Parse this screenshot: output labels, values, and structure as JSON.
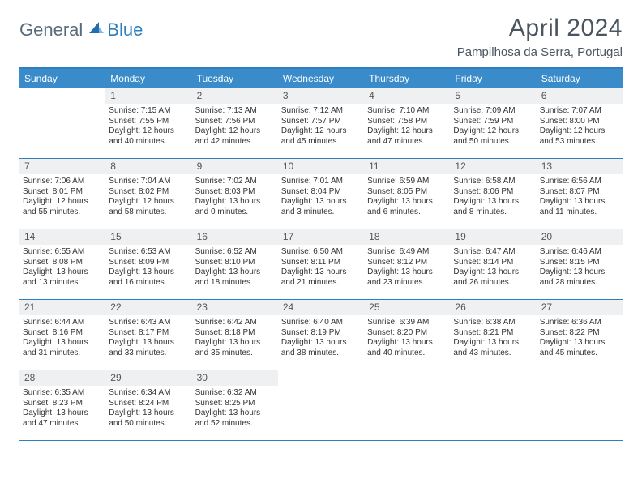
{
  "logo": {
    "text1": "General",
    "text2": "Blue"
  },
  "title": "April 2024",
  "subtitle": "Pampilhosa da Serra, Portugal",
  "colors": {
    "header_bar": "#3a8bc9",
    "rule": "#2f7fbf",
    "daynum_band": "#eef0f2",
    "title_text": "#4a5560",
    "body_text": "#333333"
  },
  "day_names": [
    "Sunday",
    "Monday",
    "Tuesday",
    "Wednesday",
    "Thursday",
    "Friday",
    "Saturday"
  ],
  "weeks": [
    [
      {
        "n": "",
        "empty": true
      },
      {
        "n": "1",
        "sr": "Sunrise: 7:15 AM",
        "ss": "Sunset: 7:55 PM",
        "d1": "Daylight: 12 hours",
        "d2": "and 40 minutes."
      },
      {
        "n": "2",
        "sr": "Sunrise: 7:13 AM",
        "ss": "Sunset: 7:56 PM",
        "d1": "Daylight: 12 hours",
        "d2": "and 42 minutes."
      },
      {
        "n": "3",
        "sr": "Sunrise: 7:12 AM",
        "ss": "Sunset: 7:57 PM",
        "d1": "Daylight: 12 hours",
        "d2": "and 45 minutes."
      },
      {
        "n": "4",
        "sr": "Sunrise: 7:10 AM",
        "ss": "Sunset: 7:58 PM",
        "d1": "Daylight: 12 hours",
        "d2": "and 47 minutes."
      },
      {
        "n": "5",
        "sr": "Sunrise: 7:09 AM",
        "ss": "Sunset: 7:59 PM",
        "d1": "Daylight: 12 hours",
        "d2": "and 50 minutes."
      },
      {
        "n": "6",
        "sr": "Sunrise: 7:07 AM",
        "ss": "Sunset: 8:00 PM",
        "d1": "Daylight: 12 hours",
        "d2": "and 53 minutes."
      }
    ],
    [
      {
        "n": "7",
        "sr": "Sunrise: 7:06 AM",
        "ss": "Sunset: 8:01 PM",
        "d1": "Daylight: 12 hours",
        "d2": "and 55 minutes."
      },
      {
        "n": "8",
        "sr": "Sunrise: 7:04 AM",
        "ss": "Sunset: 8:02 PM",
        "d1": "Daylight: 12 hours",
        "d2": "and 58 minutes."
      },
      {
        "n": "9",
        "sr": "Sunrise: 7:02 AM",
        "ss": "Sunset: 8:03 PM",
        "d1": "Daylight: 13 hours",
        "d2": "and 0 minutes."
      },
      {
        "n": "10",
        "sr": "Sunrise: 7:01 AM",
        "ss": "Sunset: 8:04 PM",
        "d1": "Daylight: 13 hours",
        "d2": "and 3 minutes."
      },
      {
        "n": "11",
        "sr": "Sunrise: 6:59 AM",
        "ss": "Sunset: 8:05 PM",
        "d1": "Daylight: 13 hours",
        "d2": "and 6 minutes."
      },
      {
        "n": "12",
        "sr": "Sunrise: 6:58 AM",
        "ss": "Sunset: 8:06 PM",
        "d1": "Daylight: 13 hours",
        "d2": "and 8 minutes."
      },
      {
        "n": "13",
        "sr": "Sunrise: 6:56 AM",
        "ss": "Sunset: 8:07 PM",
        "d1": "Daylight: 13 hours",
        "d2": "and 11 minutes."
      }
    ],
    [
      {
        "n": "14",
        "sr": "Sunrise: 6:55 AM",
        "ss": "Sunset: 8:08 PM",
        "d1": "Daylight: 13 hours",
        "d2": "and 13 minutes."
      },
      {
        "n": "15",
        "sr": "Sunrise: 6:53 AM",
        "ss": "Sunset: 8:09 PM",
        "d1": "Daylight: 13 hours",
        "d2": "and 16 minutes."
      },
      {
        "n": "16",
        "sr": "Sunrise: 6:52 AM",
        "ss": "Sunset: 8:10 PM",
        "d1": "Daylight: 13 hours",
        "d2": "and 18 minutes."
      },
      {
        "n": "17",
        "sr": "Sunrise: 6:50 AM",
        "ss": "Sunset: 8:11 PM",
        "d1": "Daylight: 13 hours",
        "d2": "and 21 minutes."
      },
      {
        "n": "18",
        "sr": "Sunrise: 6:49 AM",
        "ss": "Sunset: 8:12 PM",
        "d1": "Daylight: 13 hours",
        "d2": "and 23 minutes."
      },
      {
        "n": "19",
        "sr": "Sunrise: 6:47 AM",
        "ss": "Sunset: 8:14 PM",
        "d1": "Daylight: 13 hours",
        "d2": "and 26 minutes."
      },
      {
        "n": "20",
        "sr": "Sunrise: 6:46 AM",
        "ss": "Sunset: 8:15 PM",
        "d1": "Daylight: 13 hours",
        "d2": "and 28 minutes."
      }
    ],
    [
      {
        "n": "21",
        "sr": "Sunrise: 6:44 AM",
        "ss": "Sunset: 8:16 PM",
        "d1": "Daylight: 13 hours",
        "d2": "and 31 minutes."
      },
      {
        "n": "22",
        "sr": "Sunrise: 6:43 AM",
        "ss": "Sunset: 8:17 PM",
        "d1": "Daylight: 13 hours",
        "d2": "and 33 minutes."
      },
      {
        "n": "23",
        "sr": "Sunrise: 6:42 AM",
        "ss": "Sunset: 8:18 PM",
        "d1": "Daylight: 13 hours",
        "d2": "and 35 minutes."
      },
      {
        "n": "24",
        "sr": "Sunrise: 6:40 AM",
        "ss": "Sunset: 8:19 PM",
        "d1": "Daylight: 13 hours",
        "d2": "and 38 minutes."
      },
      {
        "n": "25",
        "sr": "Sunrise: 6:39 AM",
        "ss": "Sunset: 8:20 PM",
        "d1": "Daylight: 13 hours",
        "d2": "and 40 minutes."
      },
      {
        "n": "26",
        "sr": "Sunrise: 6:38 AM",
        "ss": "Sunset: 8:21 PM",
        "d1": "Daylight: 13 hours",
        "d2": "and 43 minutes."
      },
      {
        "n": "27",
        "sr": "Sunrise: 6:36 AM",
        "ss": "Sunset: 8:22 PM",
        "d1": "Daylight: 13 hours",
        "d2": "and 45 minutes."
      }
    ],
    [
      {
        "n": "28",
        "sr": "Sunrise: 6:35 AM",
        "ss": "Sunset: 8:23 PM",
        "d1": "Daylight: 13 hours",
        "d2": "and 47 minutes."
      },
      {
        "n": "29",
        "sr": "Sunrise: 6:34 AM",
        "ss": "Sunset: 8:24 PM",
        "d1": "Daylight: 13 hours",
        "d2": "and 50 minutes."
      },
      {
        "n": "30",
        "sr": "Sunrise: 6:32 AM",
        "ss": "Sunset: 8:25 PM",
        "d1": "Daylight: 13 hours",
        "d2": "and 52 minutes."
      },
      {
        "n": "",
        "empty": true
      },
      {
        "n": "",
        "empty": true
      },
      {
        "n": "",
        "empty": true
      },
      {
        "n": "",
        "empty": true
      }
    ]
  ]
}
